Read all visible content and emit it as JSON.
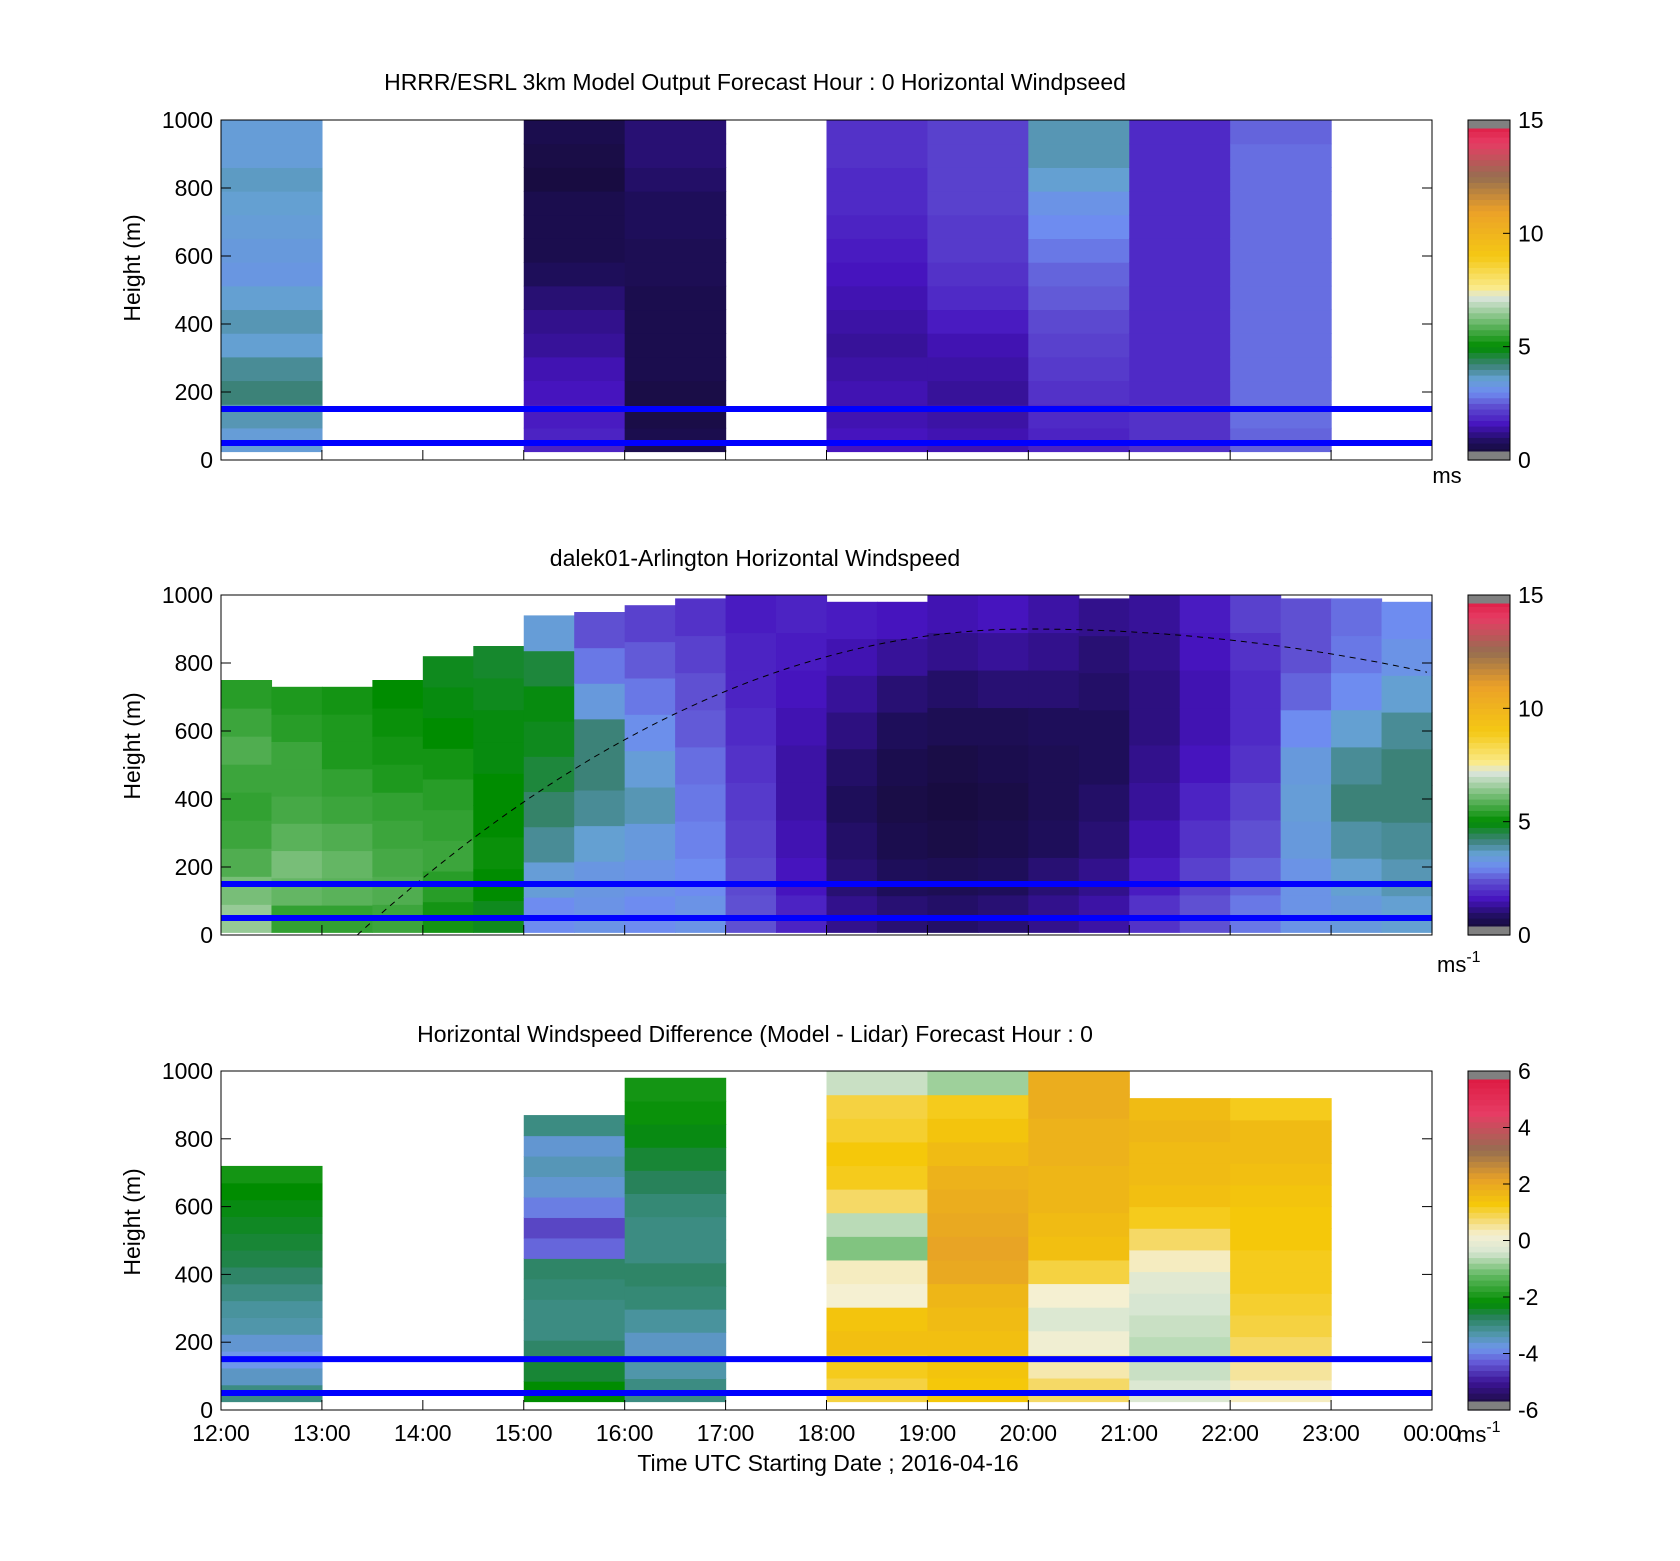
{
  "figure": {
    "xlabel": "Time UTC  Starting Date ; 2016-04-16",
    "x_ticks": [
      "12:00",
      "13:00",
      "14:00",
      "15:00",
      "16:00",
      "17:00",
      "18:00",
      "19:00",
      "20:00",
      "21:00",
      "22:00",
      "23:00",
      "00:00"
    ],
    "y_ticks": [
      "0",
      "200",
      "400",
      "600",
      "800",
      "1000"
    ],
    "ylabel": "Height (m)"
  },
  "chart_data": [
    {
      "type": "heatmap",
      "title": "HRRR/ESRL 3km Model Output   Forecast Hour : 0 Horizontal Windpseed",
      "ylabel": "Height (m)",
      "xlim": [
        "12:00",
        "00:00"
      ],
      "ylim": [
        0,
        1000
      ],
      "colorbar": {
        "ticks": [
          "0",
          "5",
          "10",
          "15"
        ],
        "range": [
          0,
          15
        ],
        "unit": "ms"
      },
      "reference_lines_m": [
        50,
        150
      ],
      "columns": [
        {
          "hour": 12,
          "values": [
            3.5,
            3.8,
            4.2,
            4.0,
            3.6,
            3.8,
            3.6,
            3.3,
            3.4,
            3.5,
            3.6,
            3.7,
            3.5,
            3.5
          ]
        },
        {
          "hour": 15,
          "values": [
            1.8,
            1.7,
            1.6,
            1.5,
            1.3,
            1.2,
            1.0,
            0.8,
            0.6,
            0.6,
            0.6,
            0.4,
            0.5,
            0.6
          ]
        },
        {
          "hour": 16,
          "values": [
            0.6,
            0.5,
            0.5,
            0.6,
            0.6,
            0.6,
            0.6,
            0.7,
            0.7,
            0.8,
            0.8,
            0.9,
            1.0,
            1.0
          ]
        },
        {
          "hour": 18,
          "values": [
            1.6,
            1.5,
            1.5,
            1.4,
            1.3,
            1.4,
            1.5,
            1.6,
            1.7,
            1.8,
            1.9,
            1.9,
            2.0,
            2.0
          ]
        },
        {
          "hour": 19,
          "values": [
            1.5,
            1.4,
            1.3,
            1.4,
            1.5,
            1.7,
            1.9,
            2.0,
            2.1,
            2.1,
            2.2,
            2.2,
            2.2,
            2.2
          ]
        },
        {
          "hour": 20,
          "values": [
            1.8,
            1.9,
            2.0,
            2.1,
            2.2,
            2.3,
            2.5,
            2.6,
            2.8,
            3.0,
            3.2,
            3.6,
            3.8,
            3.8
          ]
        },
        {
          "hour": 21,
          "values": [
            2.0,
            2.0,
            1.9,
            1.9,
            1.9,
            1.9,
            1.9,
            1.9,
            1.9,
            1.9,
            1.9,
            1.9,
            1.9,
            1.9
          ]
        },
        {
          "hour": 22,
          "values": [
            2.6,
            2.7,
            2.7,
            2.7,
            2.7,
            2.7,
            2.7,
            2.7,
            2.7,
            2.7,
            2.7,
            2.7,
            2.7,
            2.6
          ]
        }
      ]
    },
    {
      "type": "heatmap",
      "title": "dalek01-Arlington  Horizontal Windspeed",
      "ylabel": "Height (m)",
      "xlim": [
        "12:00",
        "00:00"
      ],
      "ylim": [
        0,
        1000
      ],
      "colorbar": {
        "ticks": [
          "0",
          "5",
          "10",
          "15"
        ],
        "range": [
          0,
          15
        ],
        "unit": "ms-1"
      },
      "reference_lines_m": [
        50,
        150
      ],
      "columns": [
        {
          "hour": 12.0,
          "top_m": 750,
          "values": [
            6.5,
            6.2,
            5.8,
            5.6,
            5.5,
            5.6,
            5.8,
            5.6,
            5.4
          ]
        },
        {
          "hour": 12.5,
          "top_m": 730,
          "values": [
            5.5,
            6.0,
            6.2,
            5.9,
            5.7,
            5.6,
            5.6,
            5.4,
            5.3
          ]
        },
        {
          "hour": 13.0,
          "top_m": 730,
          "values": [
            5.5,
            5.9,
            6.0,
            5.8,
            5.6,
            5.5,
            5.3,
            5.3,
            5.2
          ]
        },
        {
          "hour": 13.5,
          "top_m": 750,
          "values": [
            5.6,
            5.8,
            5.7,
            5.6,
            5.5,
            5.3,
            5.2,
            5.1,
            5.0
          ]
        },
        {
          "hour": 14.0,
          "top_m": 820,
          "values": [
            5.2,
            5.4,
            5.6,
            5.5,
            5.4,
            5.2,
            5.0,
            4.9,
            4.8
          ]
        },
        {
          "hour": 14.5,
          "top_m": 850,
          "values": [
            4.8,
            5.0,
            5.1,
            5.0,
            5.0,
            4.9,
            4.9,
            4.8,
            4.7
          ]
        },
        {
          "hour": 15.0,
          "top_m": 940,
          "values": [
            3.0,
            3.5,
            4.0,
            4.3,
            4.6,
            4.8,
            4.9,
            4.6,
            3.5
          ]
        },
        {
          "hour": 15.5,
          "top_m": 950,
          "values": [
            3.2,
            3.3,
            3.6,
            4.0,
            4.2,
            4.2,
            3.4,
            2.8,
            2.4
          ]
        },
        {
          "hour": 16.0,
          "top_m": 970,
          "values": [
            3.0,
            3.2,
            3.4,
            3.8,
            3.5,
            3.1,
            2.8,
            2.5,
            2.2
          ]
        },
        {
          "hour": 16.5,
          "top_m": 990,
          "values": [
            3.2,
            3.0,
            2.9,
            2.8,
            2.7,
            2.5,
            2.4,
            2.2,
            2.0
          ]
        },
        {
          "hour": 17.0,
          "top_m": 1000,
          "values": [
            2.4,
            2.3,
            2.2,
            2.1,
            2.0,
            1.9,
            1.8,
            1.8,
            1.7
          ]
        },
        {
          "hour": 17.5,
          "top_m": 1000,
          "values": [
            1.8,
            1.6,
            1.5,
            1.4,
            1.4,
            1.5,
            1.6,
            1.7,
            1.8
          ]
        },
        {
          "hour": 18.0,
          "top_m": 980,
          "values": [
            1.2,
            1.0,
            0.9,
            0.8,
            0.9,
            1.1,
            1.3,
            1.5,
            1.7
          ]
        },
        {
          "hour": 18.5,
          "top_m": 980,
          "values": [
            1.0,
            0.8,
            0.6,
            0.5,
            0.6,
            0.8,
            1.0,
            1.3,
            1.6
          ]
        },
        {
          "hour": 19.0,
          "top_m": 1000,
          "values": [
            0.9,
            0.7,
            0.5,
            0.4,
            0.5,
            0.7,
            0.9,
            1.2,
            1.5
          ]
        },
        {
          "hour": 19.5,
          "top_m": 1000,
          "values": [
            1.0,
            0.8,
            0.6,
            0.5,
            0.6,
            0.7,
            1.0,
            1.3,
            1.6
          ]
        },
        {
          "hour": 20.0,
          "top_m": 1000,
          "values": [
            1.2,
            1.0,
            0.8,
            0.7,
            0.7,
            0.8,
            1.0,
            1.2,
            1.4
          ]
        },
        {
          "hour": 20.5,
          "top_m": 990,
          "values": [
            1.4,
            1.2,
            1.0,
            0.9,
            0.8,
            0.8,
            0.9,
            1.0,
            1.2
          ]
        },
        {
          "hour": 21.0,
          "top_m": 1000,
          "values": [
            2.0,
            1.7,
            1.5,
            1.3,
            1.2,
            1.1,
            1.1,
            1.2,
            1.3
          ]
        },
        {
          "hour": 21.5,
          "top_m": 1000,
          "values": [
            2.4,
            2.2,
            2.0,
            1.8,
            1.6,
            1.5,
            1.5,
            1.6,
            1.7
          ]
        },
        {
          "hour": 22.0,
          "top_m": 1000,
          "values": [
            2.8,
            2.6,
            2.4,
            2.2,
            2.0,
            1.9,
            1.9,
            2.0,
            2.2
          ]
        },
        {
          "hour": 22.5,
          "top_m": 990,
          "values": [
            3.2,
            3.2,
            3.4,
            3.5,
            3.4,
            3.0,
            2.6,
            2.4,
            2.4
          ]
        },
        {
          "hour": 23.0,
          "top_m": 990,
          "values": [
            3.4,
            3.6,
            3.9,
            4.2,
            4.0,
            3.6,
            3.0,
            2.8,
            2.7
          ]
        },
        {
          "hour": 23.5,
          "top_m": 980,
          "values": [
            3.6,
            3.8,
            4.0,
            4.2,
            4.2,
            4.0,
            3.6,
            3.2,
            3.0
          ]
        }
      ],
      "dashed_curve_peak_m": 900
    },
    {
      "type": "heatmap",
      "title": "Horizontal Windspeed Difference (Model - Lidar) Forecast Hour : 0",
      "ylabel": "Height (m)",
      "xlabel": "Time UTC  Starting Date ; 2016-04-16",
      "xlim": [
        "12:00",
        "00:00"
      ],
      "ylim": [
        0,
        1000
      ],
      "colorbar": {
        "ticks": [
          "-6",
          "-4",
          "-2",
          "0",
          "2",
          "4",
          "6"
        ],
        "range": [
          -6,
          6
        ],
        "unit": "ms-1"
      },
      "reference_lines_m": [
        50,
        150
      ],
      "columns": [
        {
          "hour": 12,
          "top_m": 720,
          "values": [
            -3.0,
            -3.5,
            -3.8,
            -3.6,
            -3.3,
            -3.2,
            -3.0,
            -2.8,
            -2.6,
            -2.5,
            -2.4,
            -2.3,
            -2.2,
            -2.0
          ]
        },
        {
          "hour": 15,
          "top_m": 870,
          "values": [
            -2.2,
            -2.5,
            -2.8,
            -3.0,
            -3.0,
            -2.9,
            -2.8,
            -4.2,
            -4.5,
            -4.0,
            -3.6,
            -3.4,
            -3.6,
            -3.0
          ]
        },
        {
          "hour": 16,
          "top_m": 980,
          "values": [
            -3.0,
            -3.3,
            -3.5,
            -3.2,
            -2.9,
            -2.8,
            -3.0,
            -3.0,
            -2.9,
            -2.7,
            -2.5,
            -2.3,
            -2.1,
            -2.0
          ]
        },
        {
          "hour": 18,
          "top_m": 1000,
          "values": [
            1.0,
            1.2,
            1.5,
            1.4,
            0.2,
            0.3,
            -1.0,
            -0.6,
            0.8,
            1.2,
            1.3,
            1.1,
            1.0,
            -0.5
          ]
        },
        {
          "hour": 19,
          "top_m": 1000,
          "values": [
            1.3,
            1.4,
            1.5,
            1.6,
            1.7,
            2.0,
            2.1,
            2.0,
            1.9,
            1.8,
            1.6,
            1.4,
            1.2,
            -0.8
          ]
        },
        {
          "hour": 20,
          "top_m": 1000,
          "values": [
            0.8,
            0.4,
            0.1,
            -0.3,
            0.2,
            1.0,
            1.5,
            1.6,
            1.7,
            1.7,
            1.8,
            1.8,
            1.9,
            1.9
          ]
        },
        {
          "hour": 21,
          "top_m": 920,
          "values": [
            -0.3,
            -0.5,
            -0.6,
            -0.5,
            -0.4,
            -0.2,
            0.3,
            0.8,
            1.2,
            1.5,
            1.6,
            1.6,
            1.7,
            1.6
          ]
        },
        {
          "hour": 22,
          "top_m": 920,
          "values": [
            0.3,
            0.5,
            0.8,
            1.0,
            1.1,
            1.2,
            1.2,
            1.3,
            1.3,
            1.4,
            1.5,
            1.6,
            1.6,
            1.2
          ]
        }
      ]
    }
  ]
}
